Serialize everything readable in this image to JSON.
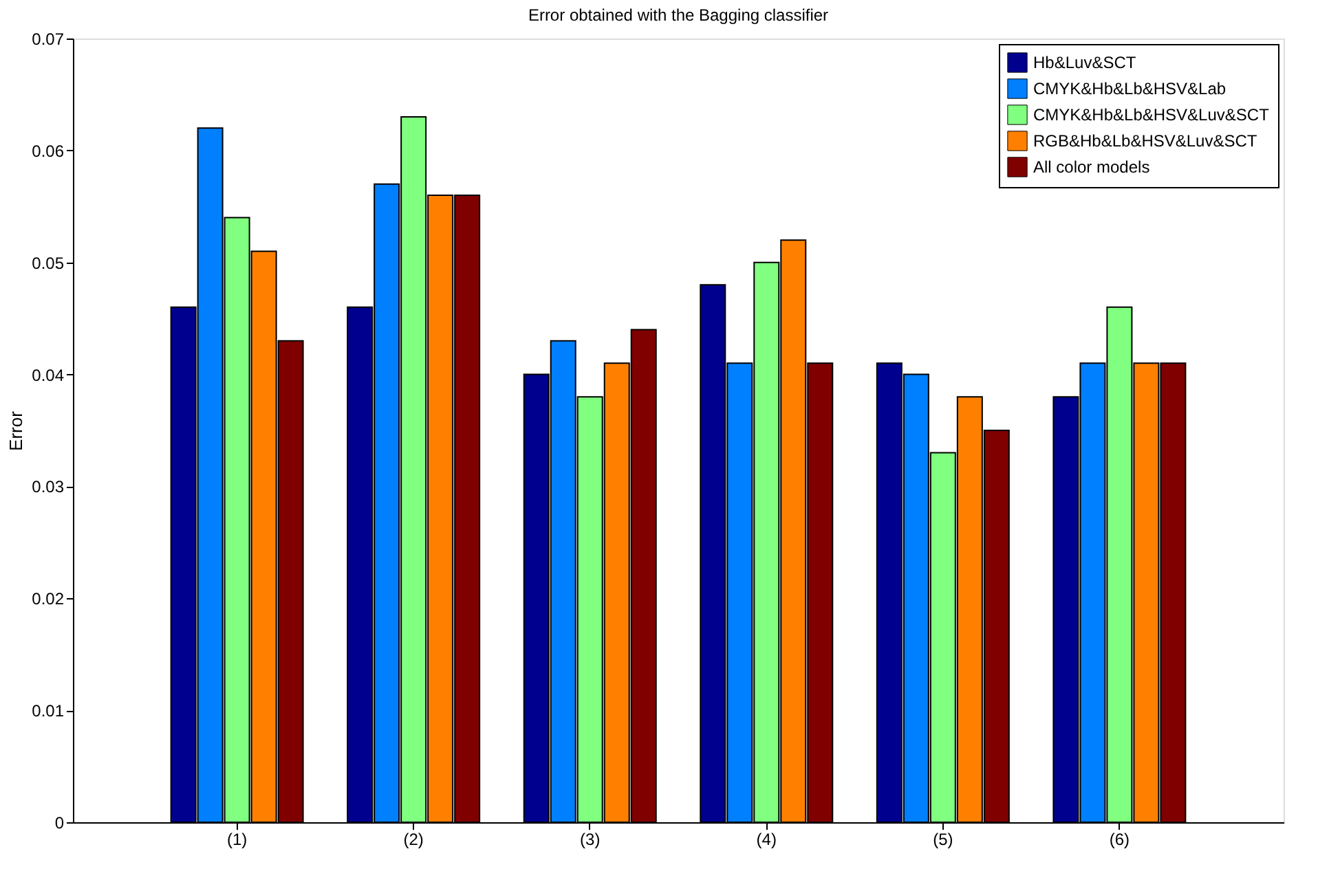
{
  "chart_data": {
    "type": "bar",
    "title": "Error obtained with the Bagging classifier",
    "ylabel": "Error",
    "categories": [
      "(1)",
      "(2)",
      "(3)",
      "(4)",
      "(5)",
      "(6)"
    ],
    "series": [
      {
        "name": " Hb&Luv&SCT",
        "color": "#00008f",
        "values": [
          0.046,
          0.046,
          0.04,
          0.048,
          0.041,
          0.038
        ]
      },
      {
        "name": "CMYK&Hb&Lb&HSV&Lab",
        "color": "#0080ff",
        "values": [
          0.062,
          0.057,
          0.043,
          0.041,
          0.04,
          0.041
        ]
      },
      {
        "name": "CMYK&Hb&Lb&HSV&Luv&SCT",
        "color": "#80ff80",
        "values": [
          0.054,
          0.063,
          0.038,
          0.05,
          0.033,
          0.046
        ]
      },
      {
        "name": "RGB&Hb&Lb&HSV&Luv&SCT",
        "color": "#ff8000",
        "values": [
          0.051,
          0.056,
          0.041,
          0.052,
          0.038,
          0.041
        ]
      },
      {
        "name": "All color models",
        "color": "#800000",
        "values": [
          0.043,
          0.056,
          0.044,
          0.041,
          0.035,
          0.041
        ]
      }
    ],
    "ylim": [
      0,
      0.07
    ],
    "yticks": [
      0,
      0.01,
      0.02,
      0.03,
      0.04,
      0.05,
      0.06,
      0.07
    ],
    "grid": false,
    "legend": "top right"
  }
}
